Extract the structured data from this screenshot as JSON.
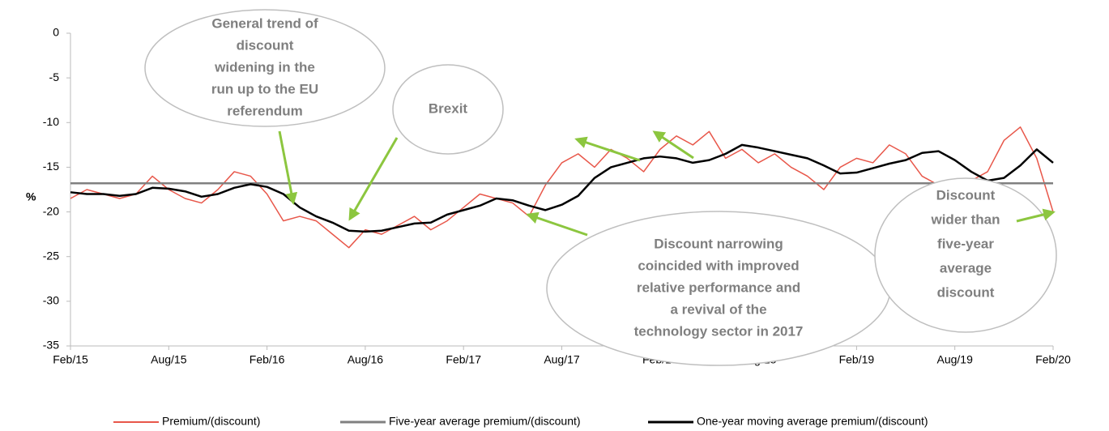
{
  "chart_data": {
    "type": "line",
    "y_label": "%",
    "categories": [
      "Feb/15",
      null,
      null,
      null,
      null,
      null,
      "Aug/15",
      null,
      null,
      null,
      null,
      null,
      "Feb/16",
      null,
      null,
      null,
      null,
      null,
      "Aug/16",
      null,
      null,
      null,
      null,
      null,
      "Feb/17",
      null,
      null,
      null,
      null,
      null,
      "Aug/17",
      null,
      null,
      null,
      null,
      null,
      "Feb/18",
      null,
      null,
      null,
      null,
      null,
      "Aug/18",
      null,
      null,
      null,
      null,
      null,
      "Feb/19",
      null,
      null,
      null,
      null,
      null,
      "Aug/19",
      null,
      null,
      null,
      null,
      null,
      "Feb/20"
    ],
    "series": [
      {
        "name": "Premium/(discount)",
        "color": "#e8574a",
        "width": 1.5,
        "values": [
          -18.5,
          -17.5,
          -18,
          -18.5,
          -18,
          -16,
          -17.5,
          -18.5,
          -19,
          -17.5,
          -15.5,
          -16,
          -18,
          -21,
          -20.5,
          -21,
          -22.5,
          -24,
          -22,
          -22.5,
          -21.5,
          -20.5,
          -22,
          -21,
          -19.5,
          -18,
          -18.5,
          -19,
          -20.5,
          -17,
          -14.5,
          -13.5,
          -15,
          -13,
          -14,
          -15.5,
          -13,
          -11.5,
          -12.5,
          -11,
          -14,
          -13,
          -14.5,
          -13.5,
          -15,
          -16,
          -17.5,
          -15,
          -14,
          -14.5,
          -12.5,
          -13.5,
          -16,
          -17,
          -17.5,
          -16.5,
          -15.5,
          -12,
          -10.5,
          -14,
          -20
        ]
      },
      {
        "name": "Five-year average premium/(discount)",
        "color": "#808080",
        "width": 2.5,
        "values": [
          -16.8,
          -16.8,
          -16.8,
          -16.8,
          -16.8,
          -16.8,
          -16.8,
          -16.8,
          -16.8,
          -16.8,
          -16.8,
          -16.8,
          -16.8,
          -16.8,
          -16.8,
          -16.8,
          -16.8,
          -16.8,
          -16.8,
          -16.8,
          -16.8,
          -16.8,
          -16.8,
          -16.8,
          -16.8,
          -16.8,
          -16.8,
          -16.8,
          -16.8,
          -16.8,
          -16.8,
          -16.8,
          -16.8,
          -16.8,
          -16.8,
          -16.8,
          -16.8,
          -16.8,
          -16.8,
          -16.8,
          -16.8,
          -16.8,
          -16.8,
          -16.8,
          -16.8,
          -16.8,
          -16.8,
          -16.8,
          -16.8,
          -16.8,
          -16.8,
          -16.8,
          -16.8,
          -16.8,
          -16.8,
          -16.8,
          -16.8,
          -16.8,
          -16.8,
          -16.8,
          -16.8
        ]
      },
      {
        "name": "One-year moving average premium/(discount)",
        "color": "#000000",
        "width": 2.5,
        "values": [
          -17.8,
          -18,
          -18,
          -18.2,
          -18,
          -17.3,
          -17.4,
          -17.7,
          -18.3,
          -18,
          -17.3,
          -16.9,
          -17.2,
          -18,
          -19.5,
          -20.5,
          -21.2,
          -22.1,
          -22.2,
          -22.1,
          -21.7,
          -21.3,
          -21.2,
          -20.3,
          -19.8,
          -19.3,
          -18.5,
          -18.7,
          -19.3,
          -19.8,
          -19.2,
          -18.2,
          -16.2,
          -15,
          -14.5,
          -14,
          -13.8,
          -14,
          -14.5,
          -14.2,
          -13.5,
          -12.5,
          -12.8,
          -13.2,
          -13.6,
          -14,
          -14.8,
          -15.7,
          -15.6,
          -15.1,
          -14.6,
          -14.2,
          -13.4,
          -13.2,
          -14.2,
          -15.5,
          -16.5,
          -16.2,
          -14.8,
          -13,
          -14.5
        ]
      }
    ],
    "ylim": [
      -35,
      0
    ],
    "yticks": [
      0,
      -5,
      -10,
      -15,
      -20,
      -25,
      -30,
      -35
    ],
    "annotations": [
      [
        "General trend of",
        "discount",
        "widening in the",
        "run up to the EU",
        "referendum"
      ],
      [
        "Brexit"
      ],
      [
        "Discount narrowing",
        "coincided with improved",
        "relative performance and",
        "a revival of the",
        "technology sector in 2017"
      ],
      [
        "Discount",
        "wider than",
        "five-year",
        "average",
        "discount"
      ]
    ]
  }
}
